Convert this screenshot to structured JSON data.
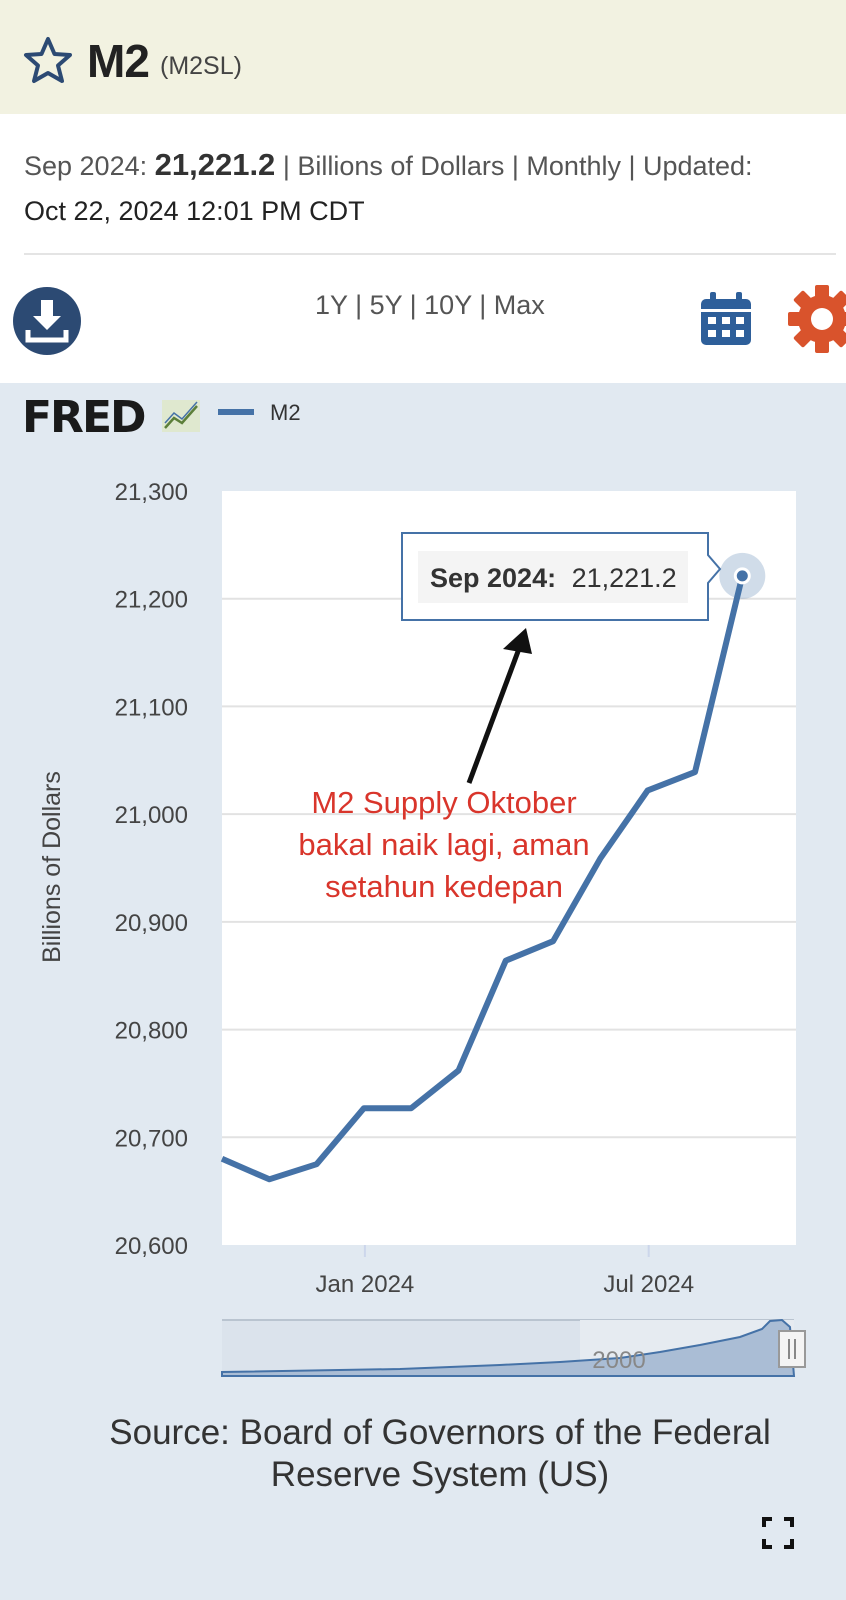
{
  "header": {
    "title": "M2",
    "series_id": "(M2SL)",
    "star_icon": "star-outline-icon"
  },
  "meta": {
    "period": "Sep 2024:",
    "value": "21,221.2",
    "details": "| Billions of Dollars | Monthly | Updated:",
    "updated": "Oct 22, 2024 12:01 PM CDT"
  },
  "toolbar": {
    "download_icon": "download-icon",
    "range_1y": "1Y",
    "range_5y": "5Y",
    "range_10y": "10Y",
    "range_max": "Max",
    "calendar_icon": "calendar-icon",
    "settings_icon": "gear-icon",
    "colors": {
      "download": "#2c4a73",
      "calendar": "#2e5f9a",
      "gear": "#d9532c"
    }
  },
  "chart_data": {
    "type": "line",
    "brand": "FRED",
    "legend": "M2",
    "ylabel": "Billions of Dollars",
    "xlabel": "",
    "ylim": [
      20600,
      21300
    ],
    "yticks": [
      "21,300",
      "21,200",
      "21,100",
      "21,000",
      "20,900",
      "20,800",
      "20,700",
      "20,600"
    ],
    "xticks": [
      "Jan 2024",
      "Jul 2024"
    ],
    "series": [
      {
        "name": "M2",
        "color": "#4572a7",
        "x": [
          "2023-10",
          "2023-11",
          "2023-12",
          "2024-01",
          "2024-02",
          "2024-03",
          "2024-04",
          "2024-05",
          "2024-06",
          "2024-07",
          "2024-08",
          "2024-09"
        ],
        "values": [
          20680,
          20661,
          20675,
          20727,
          20727,
          20762,
          20864,
          20882,
          20959,
          21022,
          21039,
          21221.2
        ]
      }
    ],
    "tooltip": {
      "label": "Sep 2024:",
      "value": "21,221.2"
    },
    "annotation": {
      "lines": [
        "M2 Supply Oktober",
        "bakal naik lagi, aman",
        "setahun kedepan"
      ],
      "color": "#d9352b"
    },
    "navigator_label": "2000",
    "source": "Source: Board of Governors of the Federal Reserve System (US)",
    "grid": true
  },
  "fullscreen_icon": "fullscreen-icon"
}
